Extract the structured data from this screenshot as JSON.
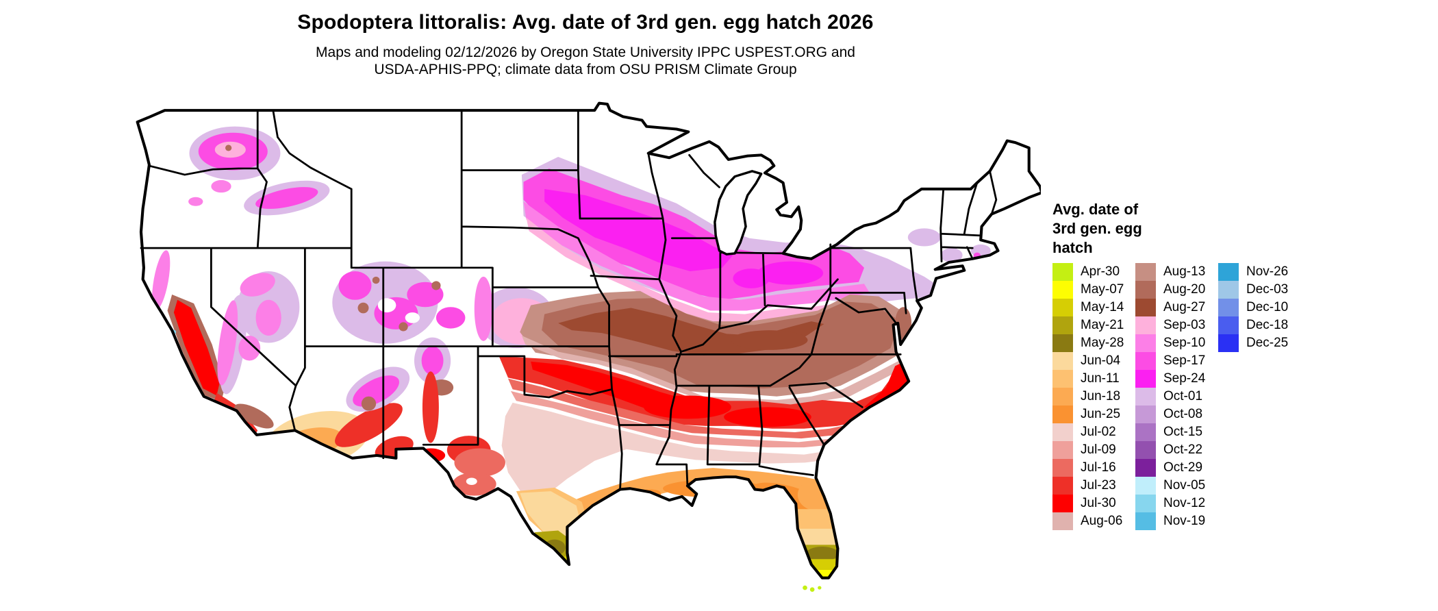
{
  "title": "Spodoptera littoralis: Avg. date of 3rd gen. egg hatch 2026",
  "subtitle_line1": "Maps and modeling 02/12/2026 by Oregon State University IPPC USPEST.ORG and",
  "subtitle_line2": "USDA-APHIS-PPQ; climate data from OSU PRISM Climate Group",
  "legend": {
    "title_lines": [
      "Avg. date of",
      "3rd gen. egg",
      "hatch"
    ],
    "per_column": [
      15,
      15,
      5
    ],
    "entries": [
      {
        "label": "Apr-30",
        "color": "#c4ef13"
      },
      {
        "label": "May-07",
        "color": "#fdfd02"
      },
      {
        "label": "May-14",
        "color": "#d6ce04"
      },
      {
        "label": "May-21",
        "color": "#b0a40e"
      },
      {
        "label": "May-28",
        "color": "#8a7a12"
      },
      {
        "label": "Jun-04",
        "color": "#fbd99c"
      },
      {
        "label": "Jun-11",
        "color": "#fdc171"
      },
      {
        "label": "Jun-18",
        "color": "#fcaa52"
      },
      {
        "label": "Jun-25",
        "color": "#fa9231"
      },
      {
        "label": "Jul-02",
        "color": "#f2d0cc"
      },
      {
        "label": "Jul-09",
        "color": "#efa09b"
      },
      {
        "label": "Jul-16",
        "color": "#ec6a60"
      },
      {
        "label": "Jul-23",
        "color": "#ee3028"
      },
      {
        "label": "Jul-30",
        "color": "#fe0000"
      },
      {
        "label": "Aug-06",
        "color": "#e0b2ae"
      },
      {
        "label": "Aug-13",
        "color": "#c68f83"
      },
      {
        "label": "Aug-20",
        "color": "#b16b5b"
      },
      {
        "label": "Aug-27",
        "color": "#9d4a31"
      },
      {
        "label": "Sep-03",
        "color": "#feb1dc"
      },
      {
        "label": "Sep-10",
        "color": "#fc7fe7"
      },
      {
        "label": "Sep-17",
        "color": "#fc4ce4"
      },
      {
        "label": "Sep-24",
        "color": "#fb20f1"
      },
      {
        "label": "Oct-01",
        "color": "#dcbbe8"
      },
      {
        "label": "Oct-08",
        "color": "#c699d7"
      },
      {
        "label": "Oct-15",
        "color": "#ab73c4"
      },
      {
        "label": "Oct-22",
        "color": "#9350af"
      },
      {
        "label": "Oct-29",
        "color": "#7c209c"
      },
      {
        "label": "Nov-05",
        "color": "#c0eefb"
      },
      {
        "label": "Nov-12",
        "color": "#87d6ee"
      },
      {
        "label": "Nov-19",
        "color": "#55bde4"
      },
      {
        "label": "Nov-26",
        "color": "#2ea4d8"
      },
      {
        "label": "Dec-03",
        "color": "#9fc7e7"
      },
      {
        "label": "Dec-10",
        "color": "#7290e8"
      },
      {
        "label": "Dec-18",
        "color": "#4a5def"
      },
      {
        "label": "Dec-25",
        "color": "#2a30f4"
      }
    ]
  }
}
